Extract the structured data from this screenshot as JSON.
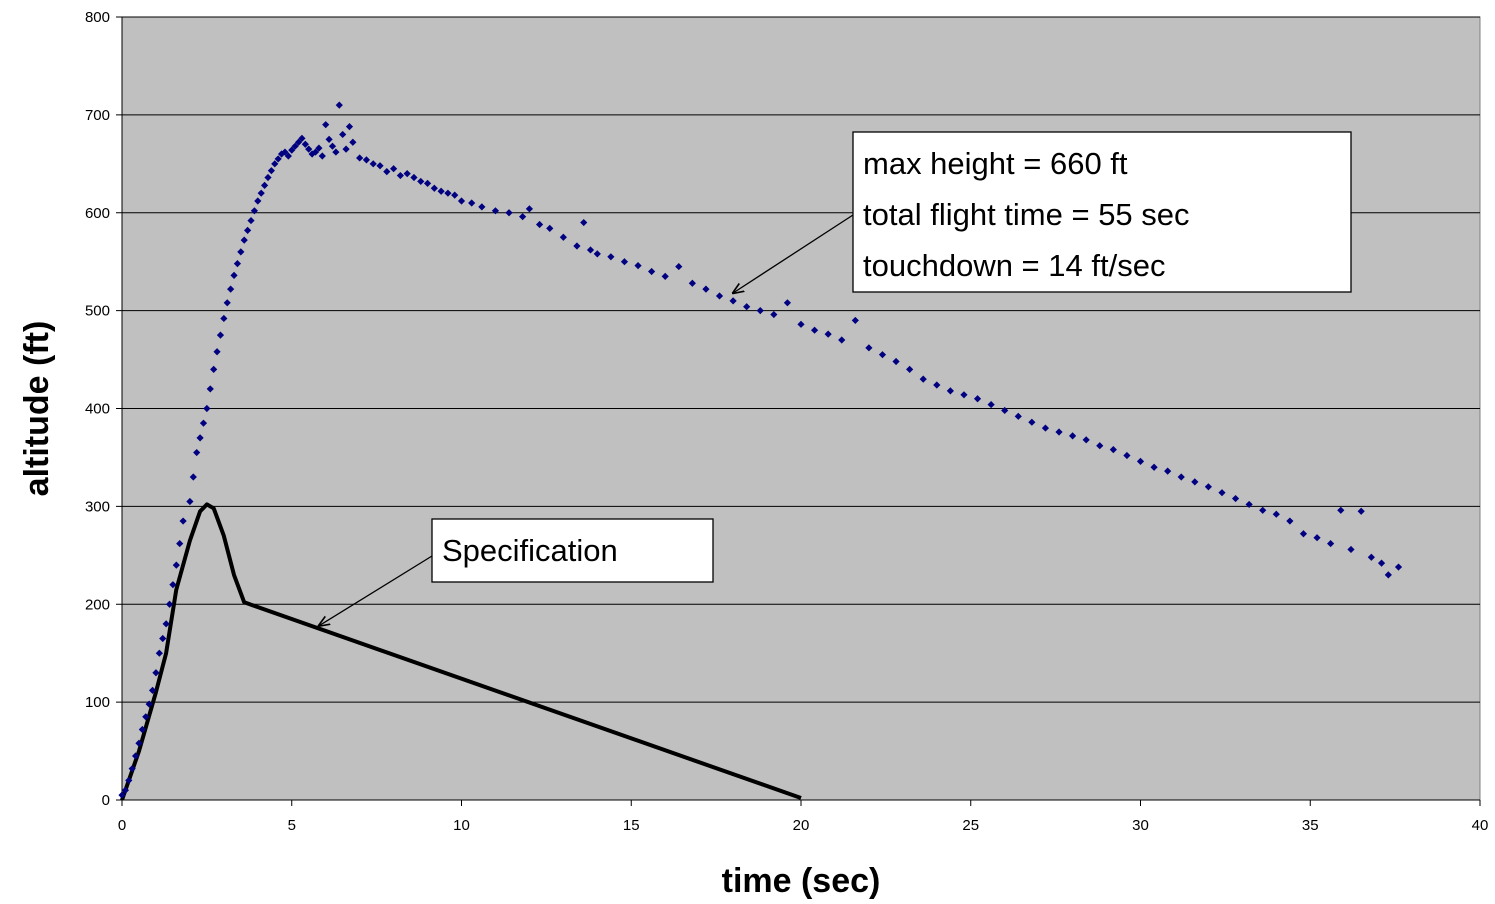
{
  "chart_data": {
    "type": "scatter",
    "title": "",
    "xlabel": "time (sec)",
    "ylabel": "altitude (ft)",
    "xlim": [
      0,
      40
    ],
    "ylim": [
      0,
      800
    ],
    "xticks": [
      0,
      5,
      10,
      15,
      20,
      25,
      30,
      35,
      40
    ],
    "yticks": [
      0,
      100,
      200,
      300,
      400,
      500,
      600,
      700,
      800
    ],
    "grid": "horizontal",
    "legend": "none",
    "colors": {
      "plot_background": "#c0c0c0",
      "measured_points": "#000080",
      "specification_line": "#000000",
      "gridlines": "#000000"
    },
    "series": [
      {
        "kind": "points",
        "values": [
          [
            0.0,
            5
          ],
          [
            0.1,
            10
          ],
          [
            0.2,
            20
          ],
          [
            0.3,
            32
          ],
          [
            0.4,
            45
          ],
          [
            0.5,
            58
          ],
          [
            0.6,
            72
          ],
          [
            0.7,
            85
          ],
          [
            0.8,
            98
          ],
          [
            0.9,
            112
          ],
          [
            1.0,
            130
          ],
          [
            1.1,
            150
          ],
          [
            1.2,
            165
          ],
          [
            1.3,
            180
          ],
          [
            1.4,
            200
          ],
          [
            1.5,
            220
          ],
          [
            1.6,
            240
          ],
          [
            1.7,
            262
          ],
          [
            1.8,
            285
          ],
          [
            2.0,
            305
          ],
          [
            2.1,
            330
          ],
          [
            2.2,
            355
          ],
          [
            2.3,
            370
          ],
          [
            2.4,
            385
          ],
          [
            2.5,
            400
          ],
          [
            2.6,
            420
          ],
          [
            2.7,
            440
          ],
          [
            2.8,
            458
          ],
          [
            2.9,
            475
          ],
          [
            3.0,
            492
          ],
          [
            3.1,
            508
          ],
          [
            3.2,
            522
          ],
          [
            3.3,
            536
          ],
          [
            3.4,
            548
          ],
          [
            3.5,
            560
          ],
          [
            3.6,
            572
          ],
          [
            3.7,
            582
          ],
          [
            3.8,
            592
          ],
          [
            3.9,
            602
          ],
          [
            4.0,
            612
          ],
          [
            4.1,
            620
          ],
          [
            4.2,
            628
          ],
          [
            4.3,
            636
          ],
          [
            4.4,
            643
          ],
          [
            4.5,
            650
          ],
          [
            4.6,
            655
          ],
          [
            4.7,
            660
          ],
          [
            4.8,
            662
          ],
          [
            4.9,
            658
          ],
          [
            5.0,
            664
          ],
          [
            5.1,
            668
          ],
          [
            5.2,
            672
          ],
          [
            5.3,
            676
          ],
          [
            5.4,
            670
          ],
          [
            5.5,
            665
          ],
          [
            5.6,
            660
          ],
          [
            5.7,
            662
          ],
          [
            5.8,
            666
          ],
          [
            5.9,
            658
          ],
          [
            6.0,
            690
          ],
          [
            6.1,
            675
          ],
          [
            6.2,
            668
          ],
          [
            6.3,
            662
          ],
          [
            6.4,
            710
          ],
          [
            6.5,
            680
          ],
          [
            6.6,
            665
          ],
          [
            6.7,
            688
          ],
          [
            6.8,
            672
          ],
          [
            7.0,
            656
          ],
          [
            7.2,
            654
          ],
          [
            7.4,
            650
          ],
          [
            7.6,
            648
          ],
          [
            7.8,
            642
          ],
          [
            8.0,
            645
          ],
          [
            8.2,
            638
          ],
          [
            8.4,
            640
          ],
          [
            8.6,
            636
          ],
          [
            8.8,
            632
          ],
          [
            9.0,
            630
          ],
          [
            9.2,
            625
          ],
          [
            9.4,
            622
          ],
          [
            9.6,
            620
          ],
          [
            9.8,
            618
          ],
          [
            10.0,
            612
          ],
          [
            10.3,
            610
          ],
          [
            10.6,
            606
          ],
          [
            11.0,
            602
          ],
          [
            11.4,
            600
          ],
          [
            11.8,
            596
          ],
          [
            12.0,
            604
          ],
          [
            12.3,
            588
          ],
          [
            12.6,
            584
          ],
          [
            13.0,
            575
          ],
          [
            13.4,
            566
          ],
          [
            13.6,
            590
          ],
          [
            13.8,
            562
          ],
          [
            14.0,
            558
          ],
          [
            14.4,
            555
          ],
          [
            14.8,
            550
          ],
          [
            15.2,
            546
          ],
          [
            15.6,
            540
          ],
          [
            16.0,
            535
          ],
          [
            16.4,
            545
          ],
          [
            16.8,
            528
          ],
          [
            17.2,
            522
          ],
          [
            17.6,
            515
          ],
          [
            18.0,
            510
          ],
          [
            18.4,
            504
          ],
          [
            18.8,
            500
          ],
          [
            19.2,
            496
          ],
          [
            19.6,
            508
          ],
          [
            20.0,
            486
          ],
          [
            20.4,
            480
          ],
          [
            20.8,
            476
          ],
          [
            21.2,
            470
          ],
          [
            21.6,
            490
          ],
          [
            22.0,
            462
          ],
          [
            22.4,
            455
          ],
          [
            22.8,
            448
          ],
          [
            23.2,
            440
          ],
          [
            23.6,
            430
          ],
          [
            24.0,
            424
          ],
          [
            24.4,
            418
          ],
          [
            24.8,
            414
          ],
          [
            25.2,
            410
          ],
          [
            25.6,
            404
          ],
          [
            26.0,
            398
          ],
          [
            26.4,
            392
          ],
          [
            26.8,
            386
          ],
          [
            27.2,
            380
          ],
          [
            27.6,
            376
          ],
          [
            28.0,
            372
          ],
          [
            28.4,
            368
          ],
          [
            28.8,
            362
          ],
          [
            29.2,
            358
          ],
          [
            29.6,
            352
          ],
          [
            30.0,
            346
          ],
          [
            30.4,
            340
          ],
          [
            30.8,
            336
          ],
          [
            31.2,
            330
          ],
          [
            31.6,
            325
          ],
          [
            32.0,
            320
          ],
          [
            32.4,
            314
          ],
          [
            32.8,
            308
          ],
          [
            33.2,
            302
          ],
          [
            33.6,
            296
          ],
          [
            34.0,
            292
          ],
          [
            34.4,
            285
          ],
          [
            34.8,
            272
          ],
          [
            35.2,
            268
          ],
          [
            35.6,
            262
          ],
          [
            35.9,
            296
          ],
          [
            36.2,
            256
          ],
          [
            36.5,
            295
          ],
          [
            36.8,
            248
          ],
          [
            37.1,
            242
          ],
          [
            37.3,
            230
          ],
          [
            37.6,
            238
          ]
        ]
      },
      {
        "kind": "line",
        "values": [
          [
            0,
            0
          ],
          [
            0.5,
            50
          ],
          [
            1.0,
            110
          ],
          [
            1.3,
            150
          ],
          [
            1.6,
            215
          ],
          [
            2.0,
            265
          ],
          [
            2.3,
            295
          ],
          [
            2.5,
            302
          ],
          [
            2.7,
            298
          ],
          [
            3.0,
            270
          ],
          [
            3.3,
            230
          ],
          [
            3.6,
            202
          ],
          [
            20,
            2
          ]
        ]
      }
    ],
    "annotations": [
      {
        "lines": [
          "max height = 660 ft",
          "total flight time = 55 sec",
          "touchdown = 14 ft/sec"
        ],
        "arrow_to": [
          18.0,
          518
        ]
      },
      {
        "lines": [
          "Specification"
        ],
        "arrow_to": [
          5.8,
          178
        ]
      }
    ]
  }
}
